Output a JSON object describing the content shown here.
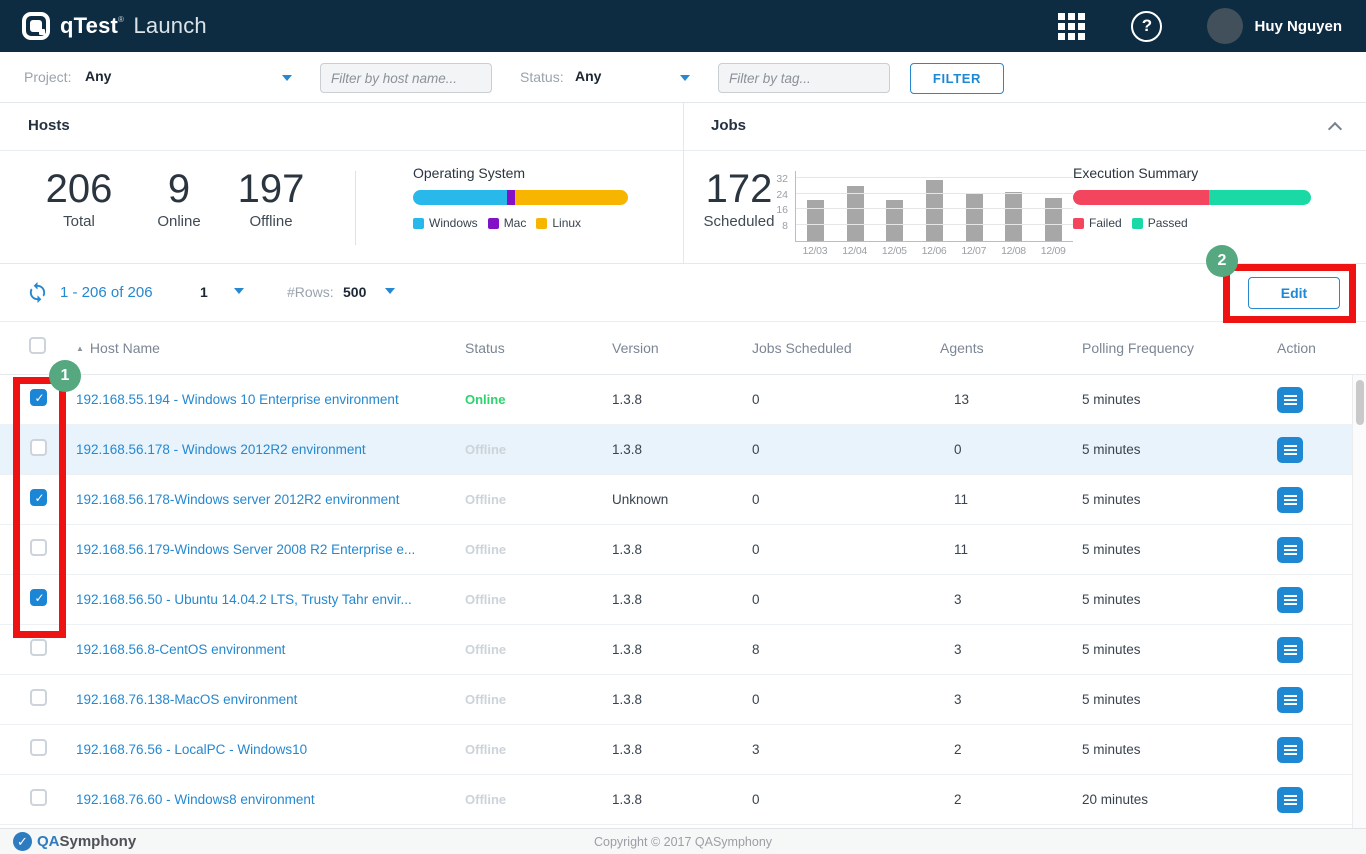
{
  "navbar": {
    "brand": {
      "product": "qTest",
      "trademark": "®",
      "module": "Launch"
    },
    "user": "Huy Nguyen"
  },
  "filter_bar": {
    "project_label": "Project:",
    "project_value": "Any",
    "host_filter_placeholder": "Filter by host name...",
    "status_label": "Status:",
    "status_value": "Any",
    "tag_filter_placeholder": "Filter by tag...",
    "filter_button": "FILTER"
  },
  "hosts_panel": {
    "title": "Hosts",
    "stats": [
      {
        "value": "206",
        "label": "Total"
      },
      {
        "value": "9",
        "label": "Online"
      },
      {
        "value": "197",
        "label": "Offline"
      }
    ]
  },
  "jobs_panel": {
    "title": "Jobs",
    "stat": {
      "value": "172",
      "label": "Scheduled"
    }
  },
  "chart_data": [
    {
      "id": "os",
      "type": "bar",
      "variant": "stacked-horizontal-percent",
      "title": "Operating System",
      "segments": [
        {
          "label": "Windows",
          "percent": 43.5,
          "color": "#29b8ea"
        },
        {
          "label": "Mac",
          "percent": 4,
          "color": "#8511c6"
        },
        {
          "label": "Linux",
          "percent": 52.5,
          "color": "#f7b500"
        }
      ]
    },
    {
      "id": "jobs_by_day",
      "type": "bar",
      "title": "",
      "categories": [
        "12/03",
        "12/04",
        "12/05",
        "12/06",
        "12/07",
        "12/08",
        "12/09"
      ],
      "values": [
        21,
        28,
        21,
        31,
        24,
        25,
        22
      ],
      "xlabel": "",
      "ylabel": "",
      "ylim": [
        0,
        36
      ],
      "yticks": [
        8,
        16,
        24,
        32
      ],
      "bar_color": "#a7a7a7",
      "grid": true
    },
    {
      "id": "execution_summary",
      "type": "bar",
      "variant": "stacked-horizontal-percent",
      "title": "Execution Summary",
      "segments": [
        {
          "label": "Failed",
          "percent": 57,
          "color": "#f4455e"
        },
        {
          "label": "Passed",
          "percent": 43,
          "color": "#1bd9a5"
        }
      ]
    }
  ],
  "toolbar": {
    "range_text": "1 - 206 of 206",
    "page_value": "1",
    "rows_label": "#Rows:",
    "rows_value": "500",
    "edit_button": "Edit"
  },
  "table": {
    "columns": [
      "Host Name",
      "Status",
      "Version",
      "Jobs Scheduled",
      "Agents",
      "Polling Frequency",
      "Action"
    ],
    "sort": {
      "column": "Host Name",
      "direction": "asc"
    },
    "rows": [
      {
        "checked": true,
        "highlighted": false,
        "name": "192.168.55.194 - Windows 10 Enterprise environment",
        "status": "Online",
        "version": "1.3.8",
        "jobs_scheduled": "0",
        "agents": "13",
        "polling_frequency": "5 minutes"
      },
      {
        "checked": false,
        "highlighted": true,
        "name": "192.168.56.178 - Windows 2012R2 environment",
        "status": "Offline",
        "version": "1.3.8",
        "jobs_scheduled": "0",
        "agents": "0",
        "polling_frequency": "5 minutes"
      },
      {
        "checked": true,
        "highlighted": false,
        "name": "192.168.56.178-Windows server 2012R2 environment",
        "status": "Offline",
        "version": "Unknown",
        "jobs_scheduled": "0",
        "agents": "11",
        "polling_frequency": "5 minutes"
      },
      {
        "checked": false,
        "highlighted": false,
        "name": "192.168.56.179-Windows Server 2008 R2 Enterprise e...",
        "status": "Offline",
        "version": "1.3.8",
        "jobs_scheduled": "0",
        "agents": "11",
        "polling_frequency": "5 minutes"
      },
      {
        "checked": true,
        "highlighted": false,
        "name": "192.168.56.50 - Ubuntu 14.04.2 LTS, Trusty Tahr envir...",
        "status": "Offline",
        "version": "1.3.8",
        "jobs_scheduled": "0",
        "agents": "3",
        "polling_frequency": "5 minutes"
      },
      {
        "checked": false,
        "highlighted": false,
        "name": "192.168.56.8-CentOS environment",
        "status": "Offline",
        "version": "1.3.8",
        "jobs_scheduled": "8",
        "agents": "3",
        "polling_frequency": "5 minutes"
      },
      {
        "checked": false,
        "highlighted": false,
        "name": "192.168.76.138-MacOS environment",
        "status": "Offline",
        "version": "1.3.8",
        "jobs_scheduled": "0",
        "agents": "3",
        "polling_frequency": "5 minutes"
      },
      {
        "checked": false,
        "highlighted": false,
        "name": "192.168.76.56 - LocalPC - Windows10",
        "status": "Offline",
        "version": "1.3.8",
        "jobs_scheduled": "3",
        "agents": "2",
        "polling_frequency": "5 minutes"
      },
      {
        "checked": false,
        "highlighted": false,
        "name": "192.168.76.60 - Windows8 environment",
        "status": "Offline",
        "version": "1.3.8",
        "jobs_scheduled": "0",
        "agents": "2",
        "polling_frequency": "20 minutes"
      }
    ]
  },
  "annotations": {
    "steps": [
      "1",
      "2"
    ]
  },
  "footer": {
    "brand_qa": "QA",
    "brand_symphony": "Symphony",
    "copyright": "Copyright © 2017 QASymphony"
  },
  "colors": {
    "navbar_bg": "#0d2c42",
    "accent_blue": "#2588d0",
    "online_green": "#2ed36e",
    "offline_gray": "#ccd3d9",
    "annotation_red": "#ee1212",
    "annotation_badge_green": "#55a87f",
    "row_highlight": "#e8f3fb"
  }
}
